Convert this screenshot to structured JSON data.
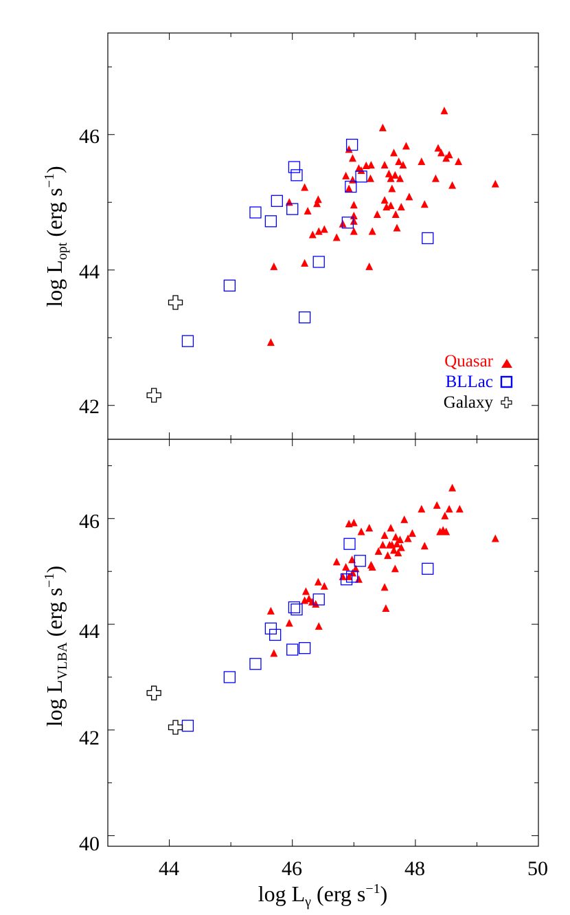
{
  "colors": {
    "quasar": "#ff0000",
    "bllac": "#0000ff",
    "galaxy": "#000000"
  },
  "legend": {
    "placement": "lower-right of top panel",
    "entries": [
      {
        "label": "Quasar",
        "marker": "filled-triangle",
        "color": "#ff0000"
      },
      {
        "label": "BLLac",
        "marker": "open-square",
        "color": "#0000ff"
      },
      {
        "label": "Galaxy",
        "marker": "open-cross",
        "color": "#000000"
      }
    ]
  },
  "xaxis": {
    "label_main": "log L",
    "label_sub": "γ",
    "label_units": " (erg s",
    "label_sup": "−1",
    "label_close": ")",
    "ticks": [
      "44",
      "46",
      "48",
      "50"
    ]
  },
  "chart_data": [
    {
      "type": "scatter",
      "panel": "top",
      "xlim": [
        43,
        50
      ],
      "ylim": [
        41.5,
        47.5
      ],
      "ylabel_main": "log L",
      "ylabel_sub": "opt",
      "ylabel_units": " (erg s",
      "ylabel_sup": "−1",
      "ylabel_close": ")",
      "yticks": [
        "42",
        "44",
        "46"
      ],
      "series": [
        {
          "name": "Quasar",
          "marker": "triangle",
          "points": [
            [
              45.65,
              42.93
            ],
            [
              45.7,
              44.05
            ],
            [
              45.95,
              45.0
            ],
            [
              46.2,
              45.22
            ],
            [
              46.2,
              44.1
            ],
            [
              46.25,
              44.87
            ],
            [
              46.33,
              44.52
            ],
            [
              46.4,
              44.98
            ],
            [
              46.42,
              45.04
            ],
            [
              46.43,
              44.57
            ],
            [
              46.52,
              44.6
            ],
            [
              46.72,
              44.48
            ],
            [
              46.82,
              44.68
            ],
            [
              46.87,
              45.39
            ],
            [
              46.92,
              45.78
            ],
            [
              46.92,
              45.2
            ],
            [
              46.98,
              45.65
            ],
            [
              46.98,
              45.33
            ],
            [
              47.0,
              44.96
            ],
            [
              47.0,
              44.8
            ],
            [
              47.0,
              44.72
            ],
            [
              47.0,
              44.57
            ],
            [
              47.08,
              45.5
            ],
            [
              47.12,
              45.47
            ],
            [
              47.2,
              45.54
            ],
            [
              47.28,
              45.55
            ],
            [
              47.27,
              45.35
            ],
            [
              47.3,
              44.57
            ],
            [
              47.25,
              44.05
            ],
            [
              47.38,
              44.82
            ],
            [
              47.47,
              46.1
            ],
            [
              47.5,
              45.55
            ],
            [
              47.5,
              45.03
            ],
            [
              47.53,
              44.93
            ],
            [
              47.57,
              45.42
            ],
            [
              47.6,
              45.35
            ],
            [
              47.62,
              45.2
            ],
            [
              47.6,
              44.95
            ],
            [
              47.65,
              45.73
            ],
            [
              47.67,
              45.4
            ],
            [
              47.68,
              44.82
            ],
            [
              47.7,
              44.62
            ],
            [
              47.73,
              45.6
            ],
            [
              47.75,
              45.35
            ],
            [
              47.77,
              44.93
            ],
            [
              47.8,
              45.55
            ],
            [
              47.85,
              45.83
            ],
            [
              47.9,
              45.08
            ],
            [
              48.1,
              45.6
            ],
            [
              48.15,
              44.97
            ],
            [
              48.33,
              45.35
            ],
            [
              48.37,
              45.8
            ],
            [
              48.42,
              45.73
            ],
            [
              48.47,
              46.35
            ],
            [
              48.5,
              45.65
            ],
            [
              48.55,
              45.7
            ],
            [
              48.6,
              45.25
            ],
            [
              48.7,
              45.6
            ],
            [
              49.3,
              45.27
            ]
          ]
        },
        {
          "name": "BLLac",
          "marker": "square",
          "points": [
            [
              44.3,
              42.95
            ],
            [
              44.98,
              43.77
            ],
            [
              45.4,
              44.85
            ],
            [
              45.65,
              44.72
            ],
            [
              45.75,
              45.02
            ],
            [
              46.0,
              44.9
            ],
            [
              46.03,
              45.52
            ],
            [
              46.07,
              45.4
            ],
            [
              46.43,
              44.12
            ],
            [
              46.2,
              43.3
            ],
            [
              46.9,
              44.7
            ],
            [
              46.95,
              45.23
            ],
            [
              46.97,
              45.85
            ],
            [
              47.12,
              45.38
            ],
            [
              48.2,
              44.47
            ]
          ]
        },
        {
          "name": "Galaxy",
          "marker": "cross",
          "points": [
            [
              43.75,
              42.15
            ],
            [
              44.1,
              43.52
            ]
          ]
        }
      ]
    },
    {
      "type": "scatter",
      "panel": "bottom",
      "xlim": [
        43,
        50
      ],
      "ylim": [
        39.8,
        47.5
      ],
      "ylabel_main": "log L",
      "ylabel_sub": "VLBA",
      "ylabel_units": "  (erg s",
      "ylabel_sup": "−1",
      "ylabel_close": ")",
      "yticks": [
        "40",
        "42",
        "44",
        "46"
      ],
      "series": [
        {
          "name": "Quasar",
          "marker": "triangle",
          "points": [
            [
              45.65,
              44.25
            ],
            [
              45.7,
              43.45
            ],
            [
              45.95,
              44.02
            ],
            [
              46.2,
              44.45
            ],
            [
              46.22,
              44.62
            ],
            [
              46.27,
              44.48
            ],
            [
              46.32,
              44.42
            ],
            [
              46.38,
              44.38
            ],
            [
              46.42,
              44.8
            ],
            [
              46.43,
              43.96
            ],
            [
              46.52,
              44.72
            ],
            [
              46.72,
              45.18
            ],
            [
              46.82,
              44.9
            ],
            [
              46.87,
              45.08
            ],
            [
              46.92,
              45.9
            ],
            [
              46.92,
              44.9
            ],
            [
              46.97,
              45.22
            ],
            [
              46.98,
              44.97
            ],
            [
              47.0,
              45.92
            ],
            [
              47.03,
              45.05
            ],
            [
              47.08,
              44.85
            ],
            [
              47.12,
              45.75
            ],
            [
              47.25,
              45.82
            ],
            [
              47.28,
              45.12
            ],
            [
              47.3,
              45.08
            ],
            [
              47.4,
              45.38
            ],
            [
              47.47,
              45.5
            ],
            [
              47.5,
              45.68
            ],
            [
              47.5,
              44.7
            ],
            [
              47.52,
              44.3
            ],
            [
              47.55,
              45.3
            ],
            [
              47.58,
              45.5
            ],
            [
              47.6,
              45.82
            ],
            [
              47.62,
              45.5
            ],
            [
              47.65,
              45.4
            ],
            [
              47.67,
              45.05
            ],
            [
              47.68,
              45.65
            ],
            [
              47.7,
              45.52
            ],
            [
              47.72,
              45.35
            ],
            [
              47.75,
              45.6
            ],
            [
              47.77,
              45.45
            ],
            [
              47.82,
              45.98
            ],
            [
              47.88,
              45.62
            ],
            [
              47.95,
              45.72
            ],
            [
              48.1,
              46.18
            ],
            [
              48.15,
              45.48
            ],
            [
              48.35,
              46.25
            ],
            [
              48.4,
              45.75
            ],
            [
              48.45,
              45.78
            ],
            [
              48.48,
              46.05
            ],
            [
              48.5,
              45.75
            ],
            [
              48.55,
              46.18
            ],
            [
              48.6,
              46.58
            ],
            [
              48.72,
              46.18
            ],
            [
              49.3,
              45.62
            ]
          ]
        },
        {
          "name": "BLLac",
          "marker": "square",
          "points": [
            [
              44.3,
              42.08
            ],
            [
              44.98,
              43.0
            ],
            [
              45.4,
              43.25
            ],
            [
              45.65,
              43.92
            ],
            [
              45.72,
              43.8
            ],
            [
              46.0,
              43.52
            ],
            [
              46.03,
              44.32
            ],
            [
              46.07,
              44.28
            ],
            [
              46.2,
              43.55
            ],
            [
              46.43,
              44.47
            ],
            [
              46.88,
              44.85
            ],
            [
              46.93,
              45.52
            ],
            [
              46.97,
              44.9
            ],
            [
              47.1,
              45.2
            ],
            [
              48.2,
              45.05
            ]
          ]
        },
        {
          "name": "Galaxy",
          "marker": "cross",
          "points": [
            [
              43.75,
              42.7
            ],
            [
              44.1,
              42.05
            ]
          ]
        }
      ]
    }
  ]
}
